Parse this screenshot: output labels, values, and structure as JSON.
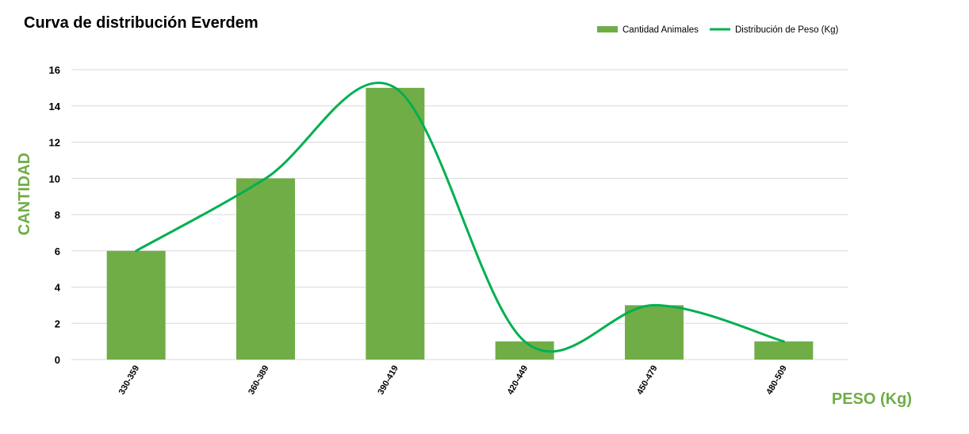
{
  "chart_data": {
    "type": "bar",
    "title": "Curva de distribución Everdem",
    "xlabel": "PESO (Kg)",
    "ylabel": "CANTIDAD",
    "ylim": [
      0,
      16
    ],
    "yticks": [
      0,
      2,
      4,
      6,
      8,
      10,
      12,
      14,
      16
    ],
    "grid": true,
    "legend_position": "top-right",
    "categories": [
      "330-359",
      "360-389",
      "390-419",
      "420-449",
      "450-479",
      "480-509"
    ],
    "series": [
      {
        "name": "Cantidad Animales",
        "type": "bar",
        "color": "#70ad47",
        "values": [
          6,
          10,
          15,
          1,
          3,
          1
        ]
      },
      {
        "name": "Distribución de Peso (Kg)",
        "type": "line",
        "color": "#00b050",
        "smooth": true,
        "values": [
          6,
          10,
          15,
          1,
          3,
          1
        ]
      }
    ],
    "colors": {
      "axis_title": "#70ad47",
      "gridline": "#d9d9d9"
    }
  }
}
